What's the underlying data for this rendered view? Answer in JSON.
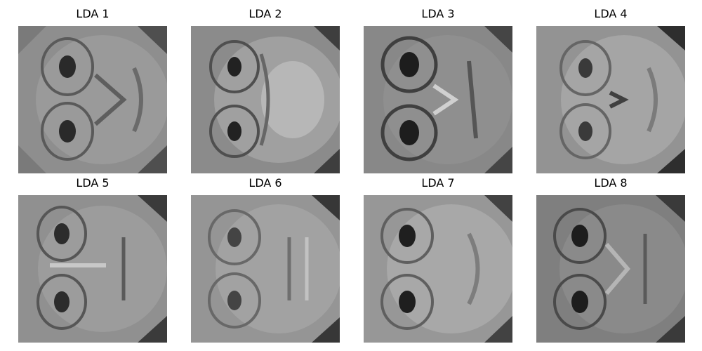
{
  "figure": {
    "colormap": "gray",
    "panels": [
      {
        "title": "LDA 1"
      },
      {
        "title": "LDA 2"
      },
      {
        "title": "LDA 3"
      },
      {
        "title": "LDA 4"
      },
      {
        "title": "LDA 5"
      },
      {
        "title": "LDA 6"
      },
      {
        "title": "LDA 7"
      },
      {
        "title": "LDA 8"
      }
    ]
  }
}
